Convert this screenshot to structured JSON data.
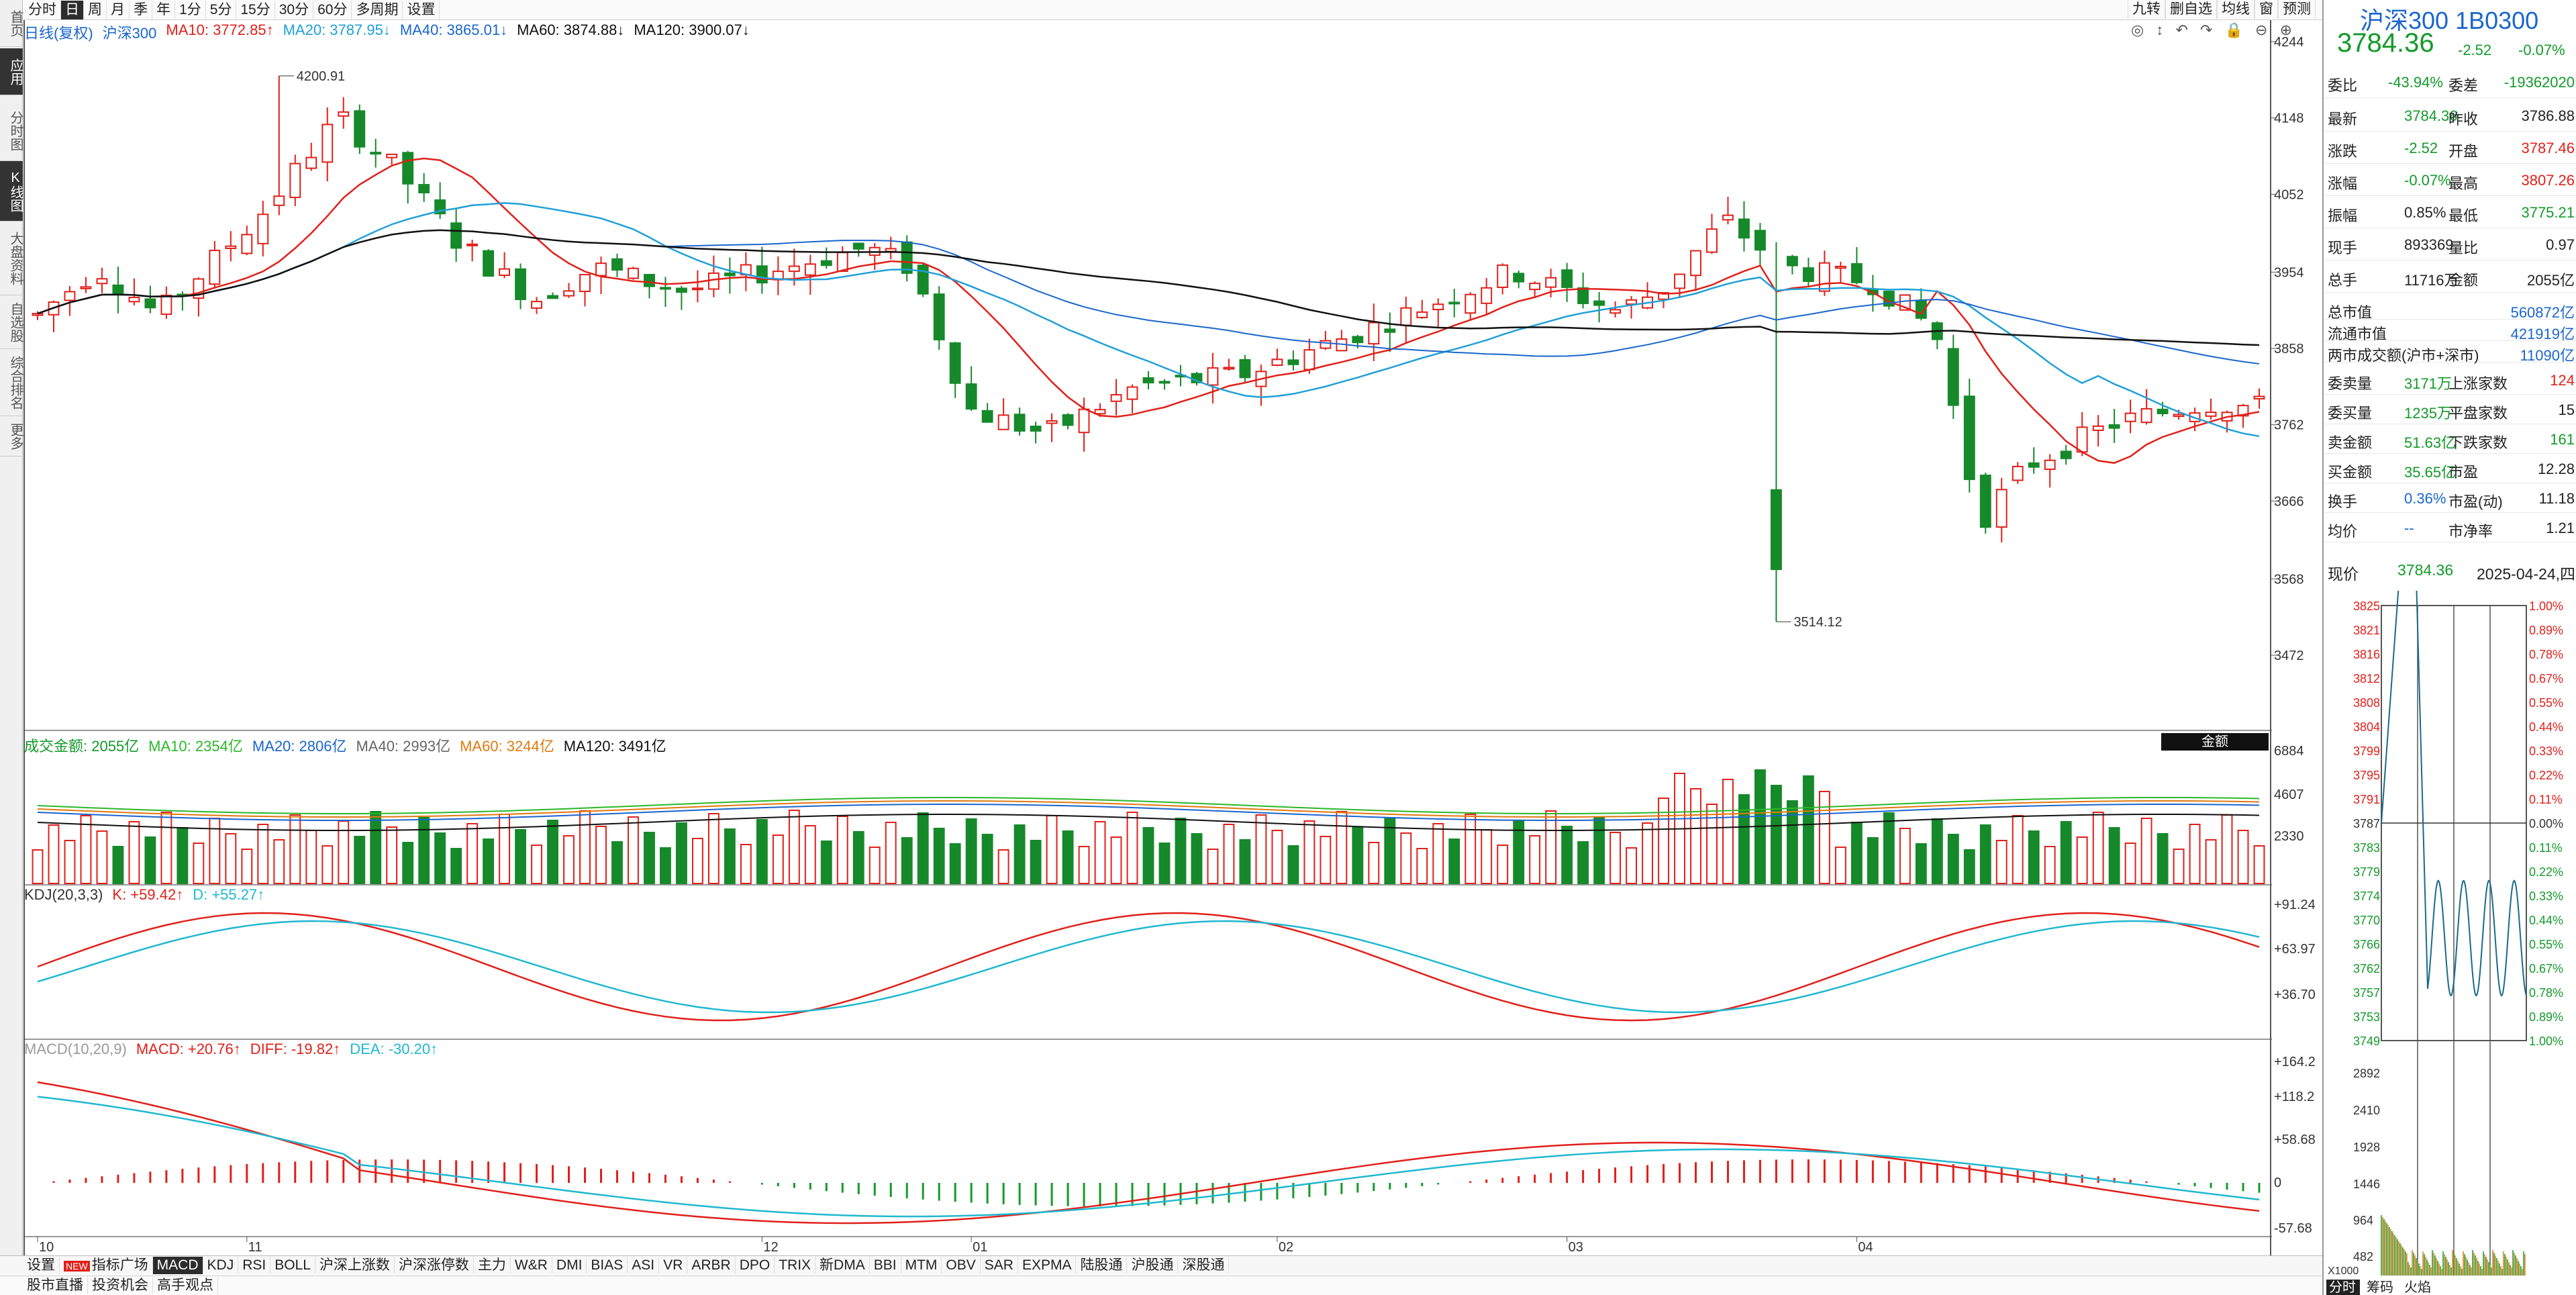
{
  "topbar": {
    "items": [
      "分时",
      "日",
      "周",
      "月",
      "季",
      "年",
      "1分",
      "5分",
      "15分",
      "30分",
      "60分",
      "多周期",
      "设置"
    ],
    "right": [
      "九转",
      "删自选",
      "均线",
      "窗",
      "预测"
    ]
  },
  "leftnav": [
    "首页",
    "应用",
    "分时图",
    "K线图",
    "大盘资料",
    "自选股",
    "综合排名",
    "更多"
  ],
  "kline": {
    "header": [
      "日线(复权)",
      "沪深300",
      "MA10: 3772.85↑",
      "MA20: 3787.95↓",
      "MA40: 3865.01↓",
      "MA60: 3874.88↓",
      "MA120: 3900.07↓"
    ],
    "yticks": [
      "4244",
      "4148",
      "4052",
      "3954",
      "3858",
      "3762",
      "3666",
      "3568",
      "3472"
    ],
    "high_label": "4200.91",
    "low_label": "3514.12",
    "xticks": [
      "10",
      "11",
      "12",
      "01",
      "02",
      "03",
      "04"
    ]
  },
  "volume": {
    "header": [
      "成交金额: 2055亿",
      "MA10: 2354亿",
      "MA20: 2806亿",
      "MA40: 2993亿",
      "MA60: 3244亿",
      "MA120: 3491亿"
    ],
    "tag": "金额",
    "yticks": [
      "6884",
      "4607",
      "2330"
    ]
  },
  "kdj": {
    "header": [
      "KDJ(20,3,3)",
      "K: +59.42↑",
      "D: +55.27↑"
    ],
    "yticks": [
      "+91.24",
      "+63.97",
      "+36.70"
    ]
  },
  "macd": {
    "header": [
      "MACD(10,20,9)",
      "MACD: +20.76↑",
      "DIFF: -19.82↑",
      "DEA: -30.20↑"
    ],
    "yticks": [
      "+164.2",
      "+118.2",
      "+58.68",
      "0",
      "-57.68"
    ]
  },
  "indicator_tabs": [
    "设置",
    "指标广场",
    "MACD",
    "KDJ",
    "RSI",
    "BOLL",
    "沪深上涨数",
    "沪深涨停数",
    "主力",
    "W&R",
    "DMI",
    "BIAS",
    "ASI",
    "VR",
    "ARBR",
    "DPO",
    "TRIX",
    "新DMA",
    "BBI",
    "MTM",
    "OBV",
    "SAR",
    "EXPMA",
    "陆股通",
    "沪股通",
    "深股通"
  ],
  "new_badge": "NEW",
  "statusbar": [
    "股市直播",
    "投资机会",
    "高手观点"
  ],
  "quote": {
    "name": "沪深300 1B0300",
    "price": "3784.36",
    "change": "-2.52",
    "pct": "-0.07%",
    "weibi": [
      "委比",
      "-43.94%",
      "委差",
      "-19362020"
    ],
    "rows": [
      [
        "最新",
        "3784.36",
        "昨收",
        "3786.88"
      ],
      [
        "涨跌",
        "-2.52",
        "开盘",
        "3787.46"
      ],
      [
        "涨幅",
        "-0.07%",
        "最高",
        "3807.26"
      ],
      [
        "振幅",
        "0.85%",
        "最低",
        "3775.21"
      ],
      [
        "现手",
        "893369",
        "量比",
        "0.97"
      ],
      [
        "总手",
        "11716万",
        "金额",
        "2055亿"
      ]
    ],
    "cap": [
      [
        "总市值",
        "560872亿"
      ],
      [
        "流通市值",
        "421919亿"
      ],
      [
        "两市成交额(沪市+深市)",
        "11090亿"
      ]
    ],
    "breadth": [
      [
        "委卖量",
        "3171万",
        "上涨家数",
        "124"
      ],
      [
        "委买量",
        "1235万",
        "平盘家数",
        "15"
      ],
      [
        "卖金额",
        "51.63亿",
        "下跌家数",
        "161"
      ],
      [
        "买金额",
        "35.65亿",
        "市盈",
        "12.28"
      ],
      [
        "换手",
        "0.36%",
        "市盈(动)",
        "11.18"
      ],
      [
        "均价",
        "--",
        "市净率",
        "1.21"
      ]
    ]
  },
  "mini": {
    "label": "现价",
    "price": "3784.36",
    "date": "2025-04-24,四",
    "left": [
      "3825",
      "3821",
      "3816",
      "3812",
      "3808",
      "3804",
      "3799",
      "3795",
      "3791",
      "3787",
      "3783",
      "3779",
      "3774",
      "3770",
      "3766",
      "3762",
      "3757",
      "3753",
      "3749"
    ],
    "right": [
      "1.00%",
      "0.89%",
      "0.78%",
      "0.67%",
      "0.55%",
      "0.44%",
      "0.33%",
      "0.22%",
      "0.11%",
      "0.00%",
      "0.11%",
      "0.22%",
      "0.33%",
      "0.44%",
      "0.55%",
      "0.67%",
      "0.78%",
      "0.89%",
      "1.00%"
    ],
    "vol": [
      "2892",
      "2410",
      "1928",
      "1446",
      "964",
      "482"
    ],
    "unit": "X1000",
    "tabs": [
      "分时",
      "筹码",
      "火焰"
    ]
  },
  "colors": {
    "up": "#e0201a",
    "down": "#16892a",
    "ma10": "#e0201a",
    "ma20": "#20a0d8",
    "ma60": "#111111"
  }
}
